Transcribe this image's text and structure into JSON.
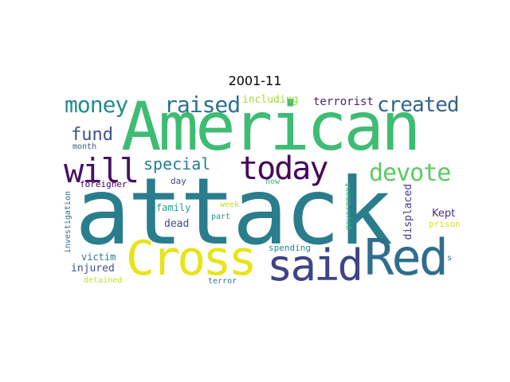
{
  "title": "2001-11",
  "words": {
    "attack": {
      "text": "attack",
      "color": "#2a7d8c"
    },
    "american": {
      "text": "American",
      "color": "#3fbc73"
    },
    "cross": {
      "text": "Cross",
      "color": "#e8e41a"
    },
    "said": {
      "text": "said",
      "color": "#404387"
    },
    "red": {
      "text": "Red",
      "color": "#2e6e8e"
    },
    "will": {
      "text": "will",
      "color": "#471164"
    },
    "today": {
      "text": "today",
      "color": "#46085c"
    },
    "devote": {
      "text": "devote",
      "color": "#5ec962"
    },
    "money": {
      "text": "money",
      "color": "#238a8d"
    },
    "raised": {
      "text": "raised",
      "color": "#2d708e"
    },
    "created": {
      "text": "created",
      "color": "#33638d"
    },
    "fund": {
      "text": "fund",
      "color": "#3b528b"
    },
    "special": {
      "text": "special",
      "color": "#287c8e"
    },
    "including": {
      "text": "including",
      "color": "#a0da39"
    },
    "terrorist": {
      "text": "terrorist",
      "color": "#482475"
    },
    "month": {
      "text": "month",
      "color": "#355f8d"
    },
    "foreigner": {
      "text": "foreigner",
      "color": "#440154"
    },
    "day": {
      "text": "day",
      "color": "#414487"
    },
    "now": {
      "text": "now",
      "color": "#35b779"
    },
    "family": {
      "text": "family",
      "color": "#20a386"
    },
    "week": {
      "text": "week",
      "color": "#bddf26"
    },
    "part": {
      "text": "part",
      "color": "#21918c"
    },
    "dead": {
      "text": "dead",
      "color": "#3e4989"
    },
    "kept": {
      "text": "Kept",
      "color": "#46327e"
    },
    "prison": {
      "text": "prison",
      "color": "#d8e219"
    },
    "investigation": {
      "text": "investigation",
      "color": "#31688e"
    },
    "government": {
      "text": "government",
      "color": "#2fb47c"
    },
    "displaced": {
      "text": "displaced",
      "color": "#443983"
    },
    "victim": {
      "text": "victim",
      "color": "#26828e"
    },
    "injured": {
      "text": "injured",
      "color": "#3b528b"
    },
    "spending": {
      "text": "spending",
      "color": "#25858e"
    },
    "detained": {
      "text": "detained",
      "color": "#c2df23"
    },
    "terror": {
      "text": "terror",
      "color": "#2a788e"
    },
    "s": {
      "text": "s",
      "color": "#31688e"
    }
  }
}
